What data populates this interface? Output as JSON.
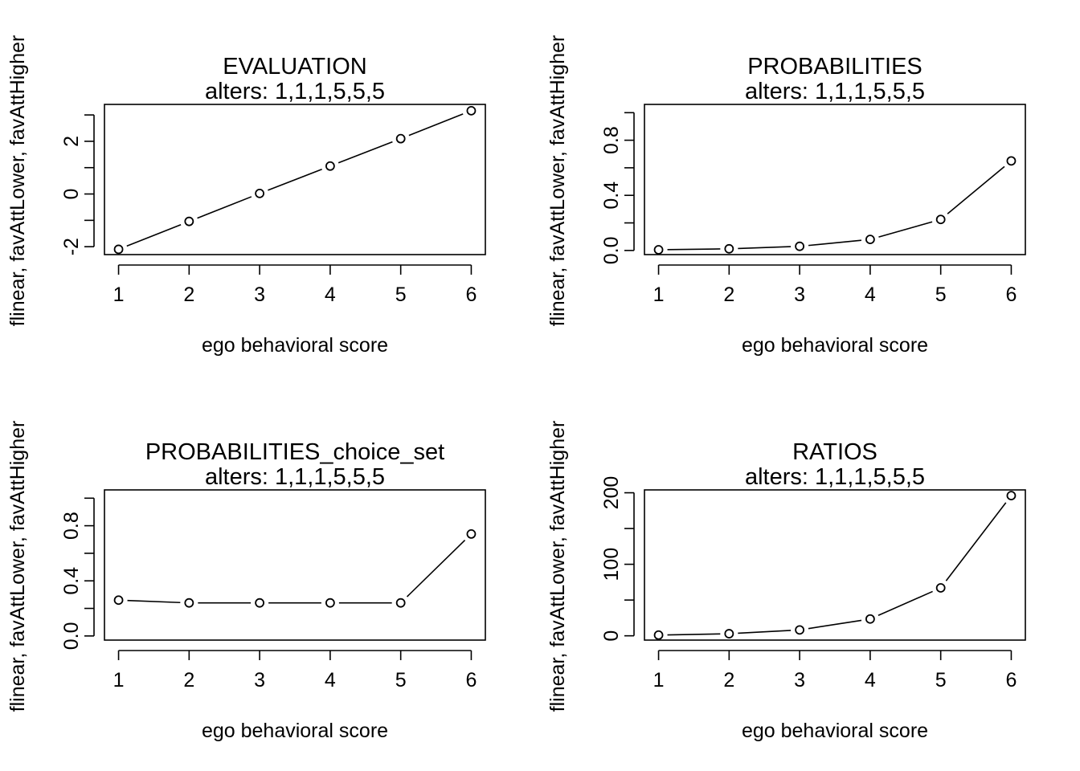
{
  "chart_data": [
    {
      "type": "line",
      "title": "EVALUATION",
      "subtitle": "alters: 1,1,1,5,5,5",
      "xlabel": "ego behavioral score",
      "ylabel": "flinear, favAttLower, favAttHigher",
      "x": [
        1,
        2,
        3,
        4,
        5,
        6
      ],
      "y": [
        -2.1,
        -1.04,
        0.02,
        1.06,
        2.1,
        3.16
      ],
      "xlim": [
        0.8,
        6.2
      ],
      "ylim": [
        -2.3,
        3.4
      ],
      "x_ticks": [
        1,
        2,
        3,
        4,
        5,
        6
      ],
      "y_ticks": [
        -3,
        -2,
        -1,
        0,
        1,
        2,
        3
      ],
      "y_tick_labels": {
        "-2": "-2",
        "0": "0",
        "2": "2"
      },
      "grid": false
    },
    {
      "type": "line",
      "title": "PROBABILITIES",
      "subtitle": "alters: 1,1,1,5,5,5",
      "xlabel": "ego behavioral score",
      "ylabel": "flinear, favAttLower, favAttHigher",
      "x": [
        1,
        2,
        3,
        4,
        5,
        6
      ],
      "y": [
        0.005,
        0.012,
        0.03,
        0.08,
        0.225,
        0.65
      ],
      "xlim": [
        0.8,
        6.2
      ],
      "ylim": [
        -0.03,
        1.06
      ],
      "x_ticks": [
        1,
        2,
        3,
        4,
        5,
        6
      ],
      "y_ticks": [
        0.0,
        0.2,
        0.4,
        0.6,
        0.8,
        1.0
      ],
      "y_tick_labels": {
        "0": "0.0",
        "0.4": "0.4",
        "0.8": "0.8"
      },
      "grid": false
    },
    {
      "type": "line",
      "title": "PROBABILITIES_choice_set",
      "subtitle": "alters: 1,1,1,5,5,5",
      "xlabel": "ego behavioral score",
      "ylabel": "flinear, favAttLower, favAttHigher",
      "x": [
        1,
        2,
        3,
        4,
        5,
        6
      ],
      "y": [
        0.26,
        0.24,
        0.24,
        0.24,
        0.24,
        0.74
      ],
      "xlim": [
        0.8,
        6.2
      ],
      "ylim": [
        -0.03,
        1.06
      ],
      "x_ticks": [
        1,
        2,
        3,
        4,
        5,
        6
      ],
      "y_ticks": [
        0.0,
        0.2,
        0.4,
        0.6,
        0.8,
        1.0
      ],
      "y_tick_labels": {
        "0": "0.0",
        "0.4": "0.4",
        "0.8": "0.8"
      },
      "grid": false
    },
    {
      "type": "line",
      "title": "RATIOS",
      "subtitle": "alters: 1,1,1,5,5,5",
      "xlabel": "ego behavioral score",
      "ylabel": "flinear, favAttLower, favAttHigher",
      "x": [
        1,
        2,
        3,
        4,
        5,
        6
      ],
      "y": [
        1,
        2.9,
        8.2,
        23.5,
        67,
        196
      ],
      "xlim": [
        0.8,
        6.2
      ],
      "ylim": [
        -6,
        204
      ],
      "x_ticks": [
        1,
        2,
        3,
        4,
        5,
        6
      ],
      "y_ticks": [
        0,
        50,
        100,
        150,
        200
      ],
      "y_tick_labels": {
        "0": "0",
        "100": "100",
        "200": "200"
      },
      "grid": false
    }
  ]
}
